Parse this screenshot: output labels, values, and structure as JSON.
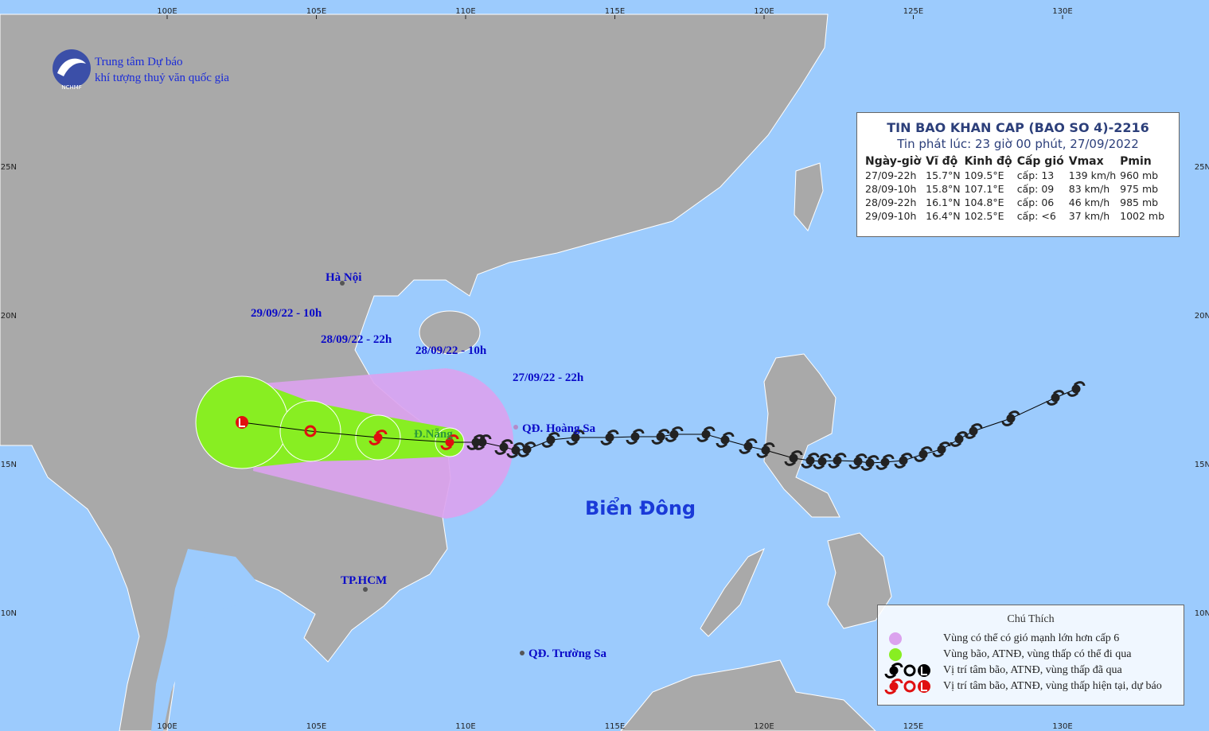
{
  "header": {
    "org_line1": "Trung tâm Dự báo",
    "org_line2": "khí tượng thuỷ văn quốc gia",
    "logo_text": "NCHMF"
  },
  "bulletin": {
    "title": "TIN BAO KHAN CAP  (BAO SO 4)-2216",
    "issued": "Tin phát lúc: 23 giờ 00 phút, 27/09/2022",
    "columns": [
      "Ngày-giờ",
      "Vĩ độ",
      "Kinh độ",
      "Cấp gió",
      "Vmax",
      "Pmin"
    ],
    "rows": [
      [
        "27/09-22h",
        "15.7°N",
        "109.5°E",
        "cấp: 13",
        "139 km/h",
        "960 mb"
      ],
      [
        "28/09-10h",
        "15.8°N",
        "107.1°E",
        "cấp: 09",
        "83 km/h",
        "975 mb"
      ],
      [
        "28/09-22h",
        "16.1°N",
        "104.8°E",
        "cấp: 06",
        "46 km/h",
        "985 mb"
      ],
      [
        "29/09-10h",
        "16.4°N",
        "102.5°E",
        "cấp: <6",
        "37 km/h",
        "1002 mb"
      ]
    ]
  },
  "map": {
    "lon_labels": [
      "100E",
      "105E",
      "110E",
      "115E",
      "120E",
      "125E",
      "130E"
    ],
    "lat_labels": [
      "25N",
      "20N",
      "15N",
      "10N"
    ],
    "places": [
      "Hà Nội",
      "TP.HCM",
      "Đ.Nẵng",
      "QĐ. Hoàng Sa",
      "QĐ. Trường Sa"
    ],
    "track_labels": [
      "29/09/22 - 10h",
      "28/09/22 - 22h",
      "28/09/22 - 10h",
      "27/09/22 - 22h"
    ],
    "sea_label": "Biển Đông"
  },
  "legend": {
    "title": "Chú Thích",
    "items": [
      "Vùng có thể có gió mạnh lớn hơn cấp 6",
      "Vùng bão, ATNĐ, vùng thấp có thể đi qua",
      "Vị trí tâm bão, ATNĐ, vùng thấp đã qua",
      "Vị trí tâm bão, ATNĐ, vùng thấp hiện tại, dự báo"
    ]
  }
}
